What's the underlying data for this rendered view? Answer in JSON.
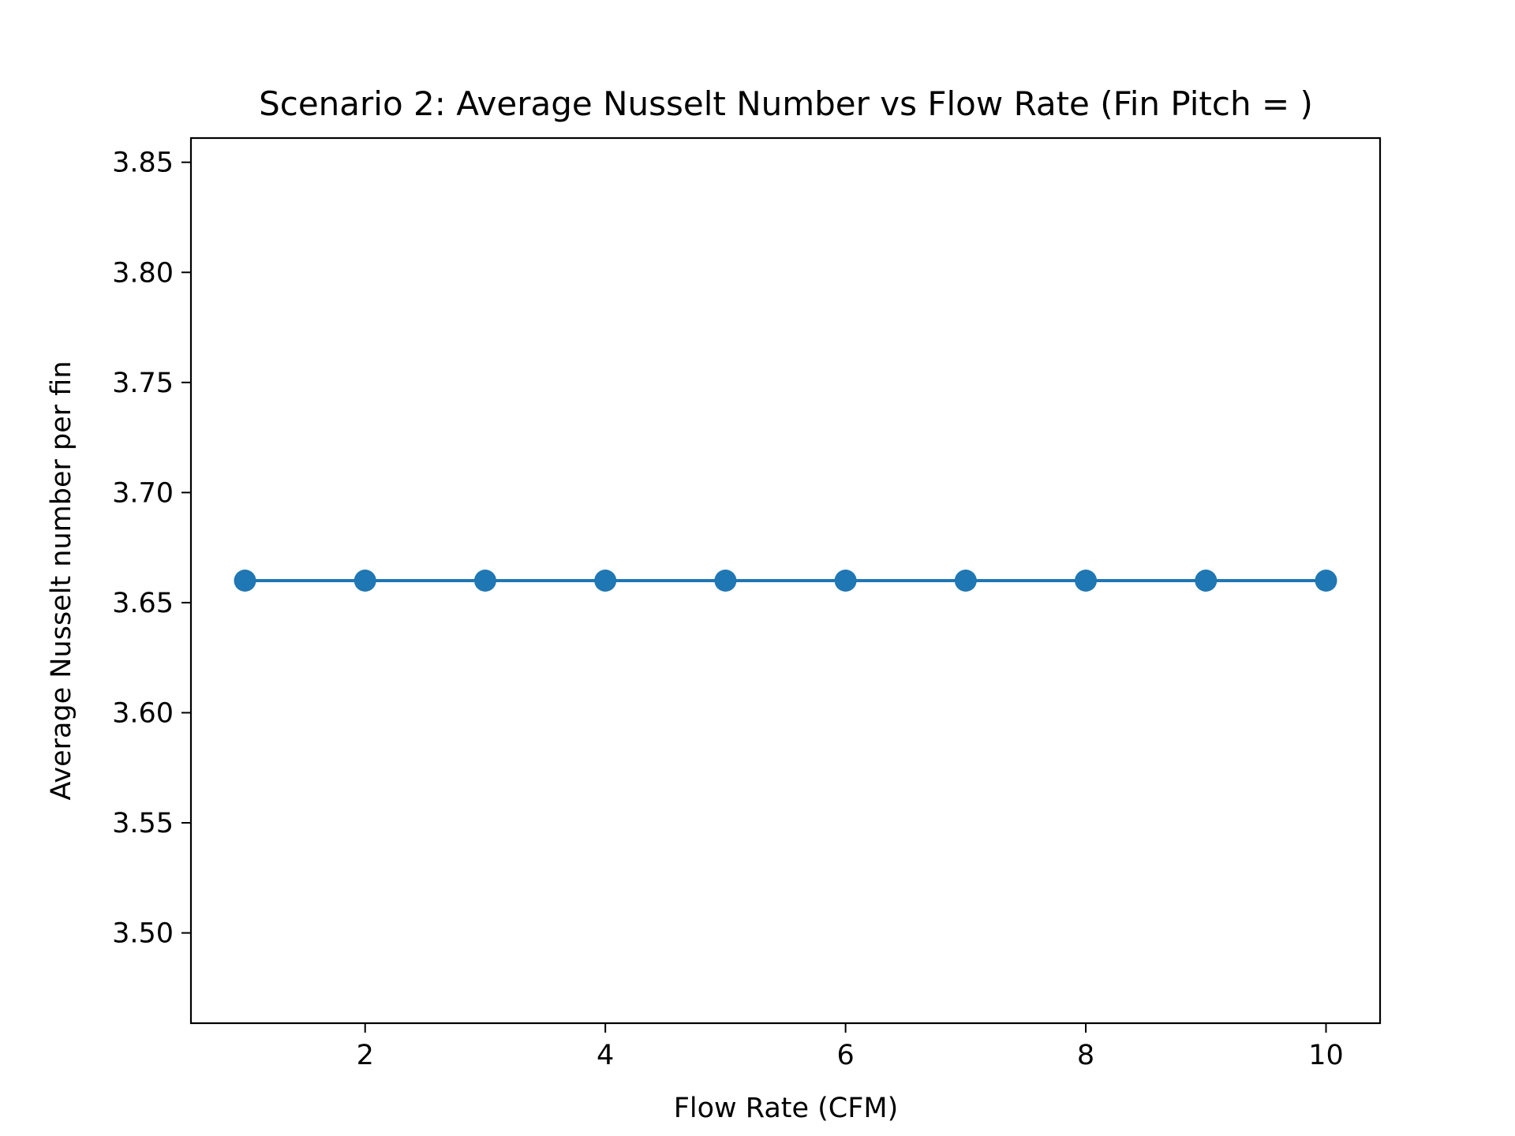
{
  "chart_data": {
    "type": "line",
    "title": "Scenario 2: Average Nusselt Number vs Flow Rate (Fin Pitch = )",
    "xlabel": "Flow Rate (CFM)",
    "ylabel": "Average Nusselt number per fin",
    "xlim": [
      0.55,
      10.45
    ],
    "ylim": [
      3.459,
      3.861
    ],
    "x_ticks": [
      2,
      4,
      6,
      8,
      10
    ],
    "x_tick_labels": [
      "2",
      "4",
      "6",
      "8",
      "10"
    ],
    "y_ticks": [
      3.5,
      3.55,
      3.6,
      3.65,
      3.7,
      3.75,
      3.8,
      3.85
    ],
    "y_tick_labels": [
      "3.50",
      "3.55",
      "3.60",
      "3.65",
      "3.70",
      "3.75",
      "3.80",
      "3.85"
    ],
    "grid": false,
    "legend": "none",
    "series": [
      {
        "color": "#1f77b4",
        "marker": "circle",
        "x": [
          1,
          2,
          3,
          4,
          5,
          6,
          7,
          8,
          9,
          10
        ],
        "y": [
          3.66,
          3.66,
          3.66,
          3.66,
          3.66,
          3.66,
          3.66,
          3.66,
          3.66,
          3.66
        ]
      }
    ]
  }
}
